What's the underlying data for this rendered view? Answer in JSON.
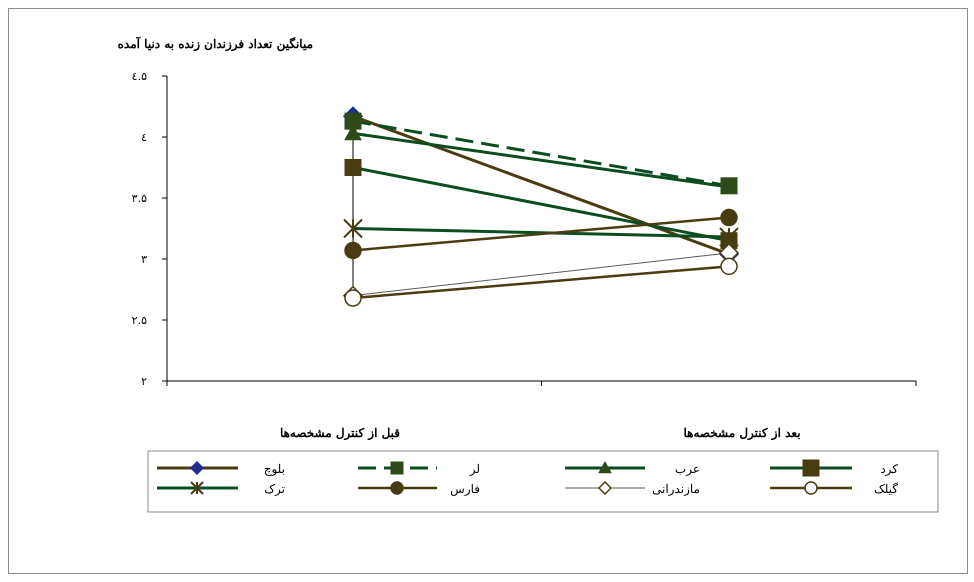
{
  "chart_data": {
    "type": "line",
    "title": "",
    "ylabel": "میانگین تعداد فرزندان زنده به دنیا آمده",
    "xlabel": "",
    "categories": [
      "قبل از کنترل مشخصه‌ها",
      "بعد از کنترل مشخصه‌ها"
    ],
    "ylim": [
      2,
      4.5
    ],
    "yticks": [
      2,
      2.5,
      3,
      3.5,
      4,
      4.5
    ],
    "ytick_labels": [
      "۲",
      "۲.۵",
      "۳",
      "۳.۵",
      "٤",
      "٤.۵"
    ],
    "grid": false,
    "legend_position": "bottom",
    "series": [
      {
        "name": "بلوچ",
        "values": [
          4.17,
          3.04
        ],
        "color": "#4a3c12",
        "marker": "diamond",
        "marker_fill": "#1f2f8f",
        "marker_stroke": "#1f2f8f",
        "dash": "solid",
        "width": 3
      },
      {
        "name": "لر",
        "values": [
          4.13,
          3.6
        ],
        "color": "#0b4d20",
        "marker": "square",
        "marker_fill": "#2c4a1a",
        "marker_stroke": "#2c4a1a",
        "dash": "dashed",
        "width": 3
      },
      {
        "name": "عرب",
        "values": [
          4.03,
          3.59
        ],
        "color": "#0b4d20",
        "marker": "triangle",
        "marker_fill": "#2c4a1a",
        "marker_stroke": "#2c4a1a",
        "dash": "solid",
        "width": 3
      },
      {
        "name": "کرد",
        "values": [
          3.75,
          3.15
        ],
        "color": "#0b4d20",
        "marker": "square",
        "marker_fill": "#4a3c12",
        "marker_stroke": "#4a3c12",
        "dash": "solid",
        "width": 3
      },
      {
        "name": "ترک",
        "values": [
          3.25,
          3.18
        ],
        "color": "#0b4d20",
        "marker": "x",
        "marker_fill": "none",
        "marker_stroke": "#4a3c12",
        "dash": "solid",
        "width": 3
      },
      {
        "name": "فارس",
        "values": [
          3.07,
          3.34
        ],
        "color": "#4a3c12",
        "marker": "circle",
        "marker_fill": "#4a3c12",
        "marker_stroke": "#4a3c12",
        "dash": "solid",
        "width": 2.5
      },
      {
        "name": "مازندرانی",
        "values": [
          2.7,
          3.05
        ],
        "color": "#595959",
        "marker": "diamond",
        "marker_fill": "#ffffff",
        "marker_stroke": "#4a3c12",
        "dash": "solid",
        "width": 1
      },
      {
        "name": "گیلک",
        "values": [
          2.68,
          2.94
        ],
        "color": "#4a3c12",
        "marker": "circle",
        "marker_fill": "#ffffff",
        "marker_stroke": "#4a3c12",
        "dash": "solid",
        "width": 2.5
      }
    ]
  }
}
